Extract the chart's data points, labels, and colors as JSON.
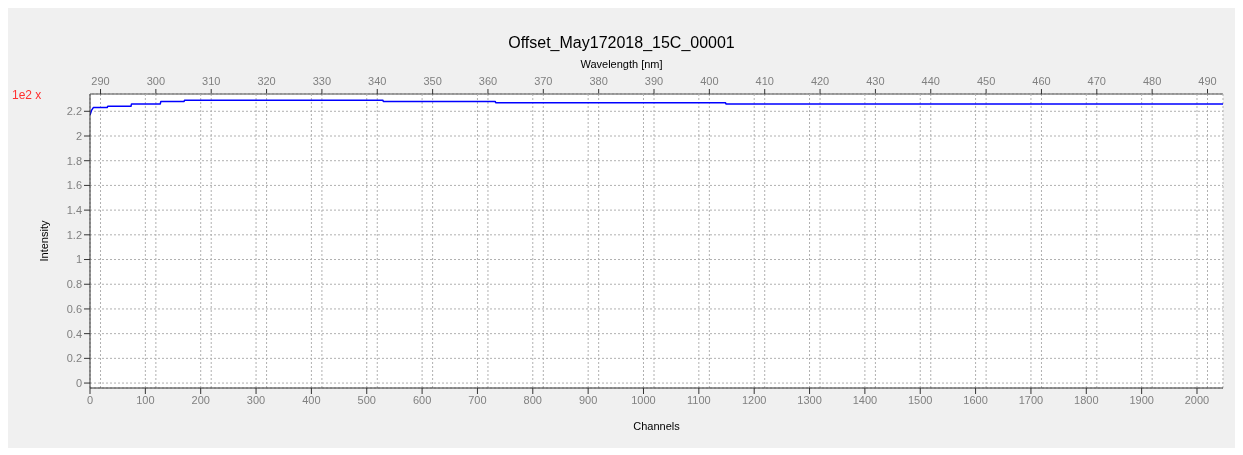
{
  "chart_data": {
    "type": "line",
    "title": "Offset_May172018_15C_00001",
    "xlabel": "Channels",
    "ylabel": "Intensity",
    "x2label": "Wavelength [nm]",
    "annotations": [
      "1e2 x"
    ],
    "series": [
      {
        "color": "#0000ff",
        "x": [
          0,
          3,
          6,
          31,
          32,
          74,
          75,
          127,
          128,
          170,
          171,
          529,
          530,
          732,
          733,
          1148,
          1149,
          2047
        ],
        "values": [
          2.17,
          2.21,
          2.23,
          2.23,
          2.24,
          2.24,
          2.26,
          2.26,
          2.28,
          2.28,
          2.29,
          2.29,
          2.28,
          2.28,
          2.27,
          2.27,
          2.26,
          2.26
        ]
      }
    ],
    "xlim": [
      0,
      2047
    ],
    "xticks": [
      0,
      100,
      200,
      300,
      400,
      500,
      600,
      700,
      800,
      900,
      1000,
      1100,
      1200,
      1300,
      1400,
      1500,
      1600,
      1700,
      1800,
      1900,
      2000
    ],
    "x2lim": [
      288.1,
      492.8
    ],
    "x2ticks": [
      290,
      300,
      310,
      320,
      330,
      340,
      350,
      360,
      370,
      380,
      390,
      400,
      410,
      420,
      430,
      440,
      450,
      460,
      470,
      480,
      490
    ],
    "ylim": [
      -0.04,
      2.34
    ],
    "yticks": [
      0,
      0.2,
      0.4,
      0.6,
      0.8,
      1,
      1.2,
      1.4,
      1.6,
      1.8,
      2,
      2.2
    ],
    "grid": true,
    "legend": false,
    "marker": "none",
    "line_style": "solid"
  }
}
